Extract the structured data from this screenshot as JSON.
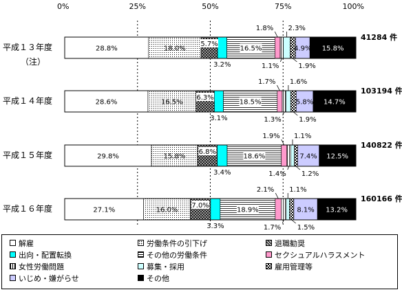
{
  "chart_data": {
    "type": "bar",
    "orientation": "horizontal",
    "stacked": true,
    "xlim": [
      0,
      100
    ],
    "x_ticks": [
      "0%",
      "25%",
      "50%",
      "75%",
      "100%"
    ],
    "grid": "vertical dashed at 25%, 50%, 75%",
    "legend_position": "bottom",
    "categories": [
      "平成１３年度",
      "平成１４年度",
      "平成１５年度",
      "平成１６年度"
    ],
    "category_notes": [
      "（注）",
      "",
      "",
      ""
    ],
    "totals": [
      "41284 件",
      "103194 件",
      "140822 件",
      "160166 件"
    ],
    "series": [
      {
        "name": "解雇",
        "color": "#ffffff",
        "values": [
          28.8,
          28.6,
          29.8,
          27.1
        ],
        "labels": [
          "28.8%",
          "28.6%",
          "29.8%",
          "27.1%"
        ]
      },
      {
        "name": "労働条件の引下げ",
        "color": "#ffffff",
        "pattern": "dots",
        "values": [
          18.0,
          16.5,
          15.8,
          16.0
        ],
        "labels": [
          "18.0%",
          "16.5%",
          "15.8%",
          "16.0%"
        ]
      },
      {
        "name": "退職勧奨",
        "color": "#9a9a9a",
        "pattern": "crosshatch",
        "values": [
          5.7,
          6.3,
          6.8,
          7.0
        ],
        "labels": [
          "5.7%",
          "6.3%",
          "6.8%",
          "7.0%"
        ]
      },
      {
        "name": "出向・配置転換",
        "color": "#00ffff",
        "values": [
          3.2,
          3.1,
          3.4,
          3.3
        ],
        "labels": [
          "3.2%",
          "3.1%",
          "3.4%",
          "3.3%"
        ]
      },
      {
        "name": "その他の労働条件",
        "color": "#ffffff",
        "pattern": "hlines",
        "values": [
          16.5,
          18.5,
          18.6,
          18.9
        ],
        "labels": [
          "16.5%",
          "18.5%",
          "18.6%",
          "18.9%"
        ]
      },
      {
        "name": "セクシュアルハラスメント",
        "color": "#ff99cc",
        "values": [
          1.8,
          1.7,
          1.9,
          2.1
        ],
        "labels": [
          "1.8%",
          "1.7%",
          "1.9%",
          "2.1%"
        ]
      },
      {
        "name": "女性労働問題",
        "color": "#ffffff",
        "pattern": "vlines",
        "values": [
          1.1,
          1.3,
          1.4,
          1.7
        ],
        "labels": [
          "1.1%",
          "1.3%",
          "1.4%",
          "1.7%"
        ]
      },
      {
        "name": "募集・採用",
        "color": "#ccffff",
        "values": [
          2.3,
          1.6,
          1.1,
          1.1
        ],
        "labels": [
          "2.3%",
          "1.6%",
          "1.1%",
          "1.1%"
        ]
      },
      {
        "name": "雇用管理等",
        "color": "#ffffff",
        "pattern": "checker",
        "values": [
          1.9,
          1.9,
          1.2,
          1.5
        ],
        "labels": [
          "1.9%",
          "1.9%",
          "1.2%",
          "1.5%"
        ]
      },
      {
        "name": "いじめ・嫌がらせ",
        "color": "#ccccff",
        "values": [
          4.9,
          5.8,
          7.4,
          8.1
        ],
        "labels": [
          "4.9%",
          "5.8%",
          "7.4%",
          "8.1%"
        ]
      },
      {
        "name": "その他",
        "color": "#000000",
        "values": [
          15.8,
          14.7,
          12.5,
          13.2
        ],
        "labels": [
          "15.8%",
          "14.7%",
          "12.5%",
          "13.2%"
        ]
      }
    ]
  }
}
